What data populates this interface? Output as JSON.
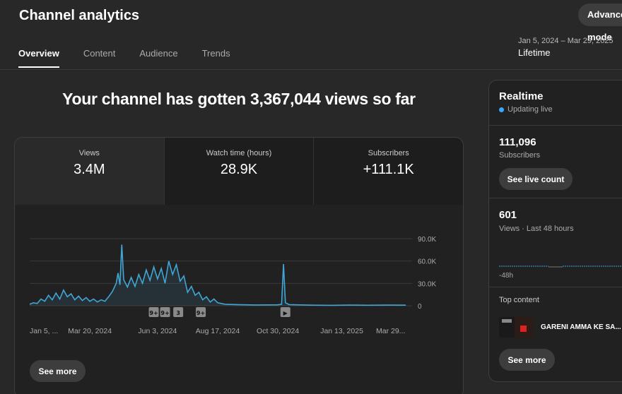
{
  "header": {
    "title": "Channel analytics",
    "advanced_label": "Advanced mode",
    "date_range": "Jan 5, 2024 – Mar 29, 2025",
    "period": "Lifetime"
  },
  "tabs": [
    {
      "label": "Overview",
      "active": true
    },
    {
      "label": "Content",
      "active": false
    },
    {
      "label": "Audience",
      "active": false
    },
    {
      "label": "Trends",
      "active": false
    }
  ],
  "headline": "Your channel has gotten 3,367,044 views so far",
  "metrics": [
    {
      "label": "Views",
      "value": "3.4M"
    },
    {
      "label": "Watch time (hours)",
      "value": "28.9K"
    },
    {
      "label": "Subscribers",
      "value": "+111.1K"
    }
  ],
  "see_more_label": "See more",
  "chart_data": {
    "type": "line",
    "series_color": "#41a6d6",
    "y_ticks": [
      "90.0K",
      "60.0K",
      "30.0K",
      "0"
    ],
    "ylim": [
      0,
      90000
    ],
    "x_ticks": [
      "Jan 5, ...",
      "Mar 20, 2024",
      "Jun 3, 2024",
      "Aug 17, 2024",
      "Oct 30, 2024",
      "Jan 13, 2025",
      "Mar 29..."
    ],
    "x_tick_fractions": [
      0.04,
      0.16,
      0.34,
      0.5,
      0.66,
      0.83,
      0.96
    ],
    "markers": [
      {
        "label": "9+",
        "fraction": 0.33
      },
      {
        "label": "9+",
        "fraction": 0.36
      },
      {
        "label": "3",
        "fraction": 0.395
      },
      {
        "label": "9+",
        "fraction": 0.455
      },
      {
        "label": "▶",
        "fraction": 0.68
      }
    ],
    "points": [
      [
        0.0,
        2000
      ],
      [
        0.01,
        4000
      ],
      [
        0.02,
        3000
      ],
      [
        0.03,
        9000
      ],
      [
        0.04,
        6000
      ],
      [
        0.05,
        14000
      ],
      [
        0.06,
        8000
      ],
      [
        0.07,
        17000
      ],
      [
        0.08,
        9000
      ],
      [
        0.09,
        21000
      ],
      [
        0.1,
        12000
      ],
      [
        0.11,
        16000
      ],
      [
        0.12,
        8000
      ],
      [
        0.13,
        13000
      ],
      [
        0.14,
        7000
      ],
      [
        0.15,
        11000
      ],
      [
        0.16,
        6000
      ],
      [
        0.17,
        9000
      ],
      [
        0.18,
        5000
      ],
      [
        0.19,
        8000
      ],
      [
        0.2,
        6000
      ],
      [
        0.21,
        12000
      ],
      [
        0.22,
        19000
      ],
      [
        0.23,
        30000
      ],
      [
        0.235,
        44000
      ],
      [
        0.24,
        28000
      ],
      [
        0.245,
        82000
      ],
      [
        0.25,
        35000
      ],
      [
        0.26,
        25000
      ],
      [
        0.27,
        38000
      ],
      [
        0.28,
        26000
      ],
      [
        0.29,
        42000
      ],
      [
        0.3,
        30000
      ],
      [
        0.31,
        48000
      ],
      [
        0.32,
        34000
      ],
      [
        0.33,
        52000
      ],
      [
        0.34,
        36000
      ],
      [
        0.35,
        50000
      ],
      [
        0.36,
        30000
      ],
      [
        0.37,
        60000
      ],
      [
        0.38,
        42000
      ],
      [
        0.39,
        55000
      ],
      [
        0.4,
        33000
      ],
      [
        0.41,
        40000
      ],
      [
        0.42,
        18000
      ],
      [
        0.43,
        26000
      ],
      [
        0.44,
        14000
      ],
      [
        0.45,
        18000
      ],
      [
        0.46,
        8000
      ],
      [
        0.47,
        12000
      ],
      [
        0.48,
        5000
      ],
      [
        0.49,
        9000
      ],
      [
        0.5,
        4000
      ],
      [
        0.52,
        2000
      ],
      [
        0.55,
        1500
      ],
      [
        0.6,
        1000
      ],
      [
        0.66,
        1200
      ],
      [
        0.67,
        2000
      ],
      [
        0.675,
        56000
      ],
      [
        0.68,
        4000
      ],
      [
        0.69,
        1500
      ],
      [
        0.75,
        800
      ],
      [
        0.8,
        600
      ],
      [
        0.85,
        900
      ],
      [
        0.9,
        700
      ],
      [
        0.95,
        900
      ],
      [
        1.0,
        800
      ]
    ]
  },
  "realtime": {
    "title": "Realtime",
    "status": "Updating live",
    "subscribers_value": "111,096",
    "subscribers_label": "Subscribers",
    "live_button": "See live count",
    "views_value": "601",
    "views_label": "Views · Last 48 hours",
    "axis_label": "-48h",
    "top_content_label": "Top content",
    "top_content_title": "GARENI AMMA KE SA...",
    "see_more_label": "See more"
  }
}
